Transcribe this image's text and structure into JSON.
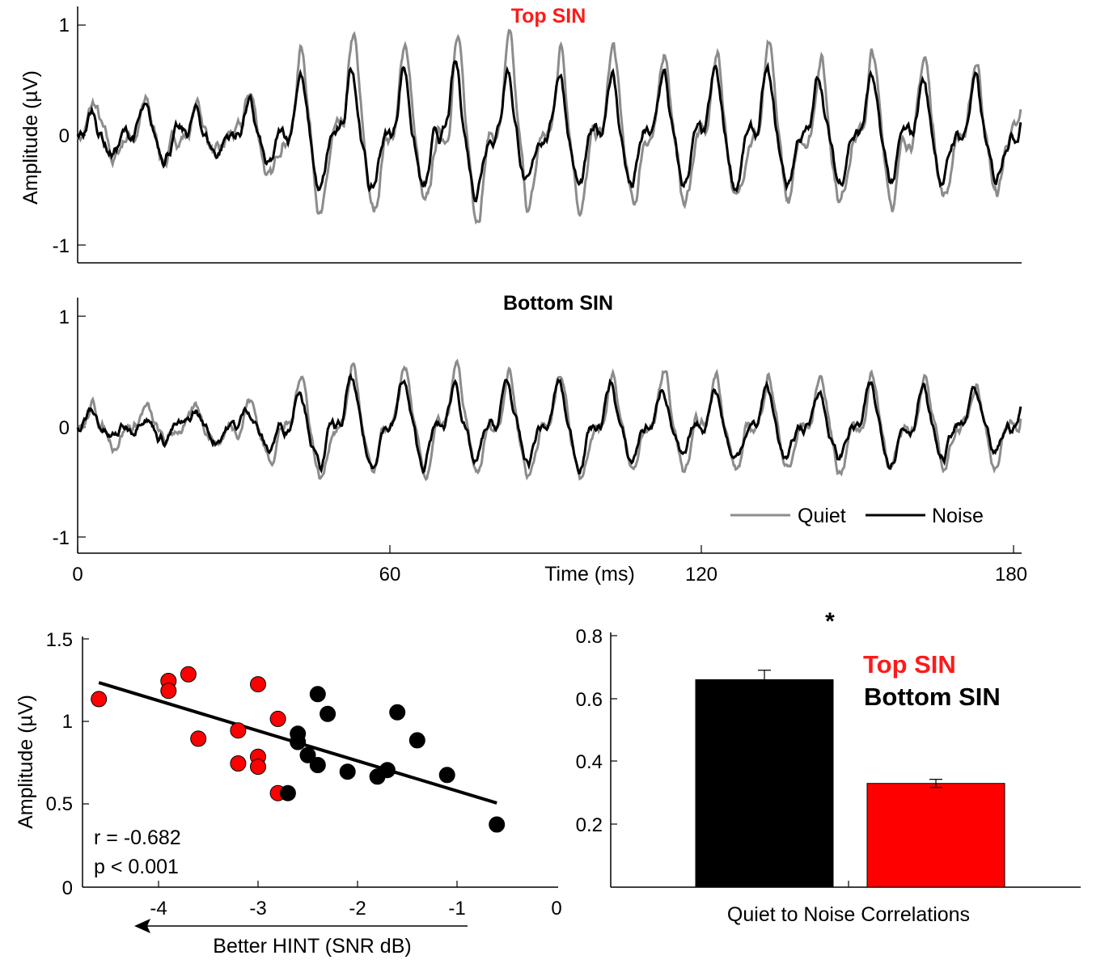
{
  "colors": {
    "quiet": "#8c8c8c",
    "noise": "#000000",
    "top_sin": "#ff0000",
    "bottom_sin": "#000000",
    "top_title": "#ff1a1a"
  },
  "chart_data": [
    {
      "type": "line",
      "title": "Top SIN",
      "ylabel": "Amplitude (µV)",
      "xlim": [
        0,
        180
      ],
      "ylim": [
        -1.2,
        1.2
      ],
      "yticks": [
        "1",
        "0",
        "-1"
      ],
      "series": [
        {
          "name": "Quiet",
          "amp": 0.85,
          "noise_amp": 0.16
        },
        {
          "name": "Noise",
          "amp": 0.62,
          "noise_amp": 0.14
        }
      ]
    },
    {
      "type": "line",
      "title": "Bottom SIN",
      "xlabel": "Time (ms)",
      "xlim": [
        0,
        180
      ],
      "ylim": [
        -1.2,
        1.2
      ],
      "yticks": [
        "1",
        "0",
        "-1"
      ],
      "xticks": [
        "0",
        "60",
        "120",
        "180"
      ],
      "legend": {
        "position": "bottom-right",
        "entries": [
          "Quiet",
          "Noise"
        ]
      },
      "series": [
        {
          "name": "Quiet",
          "amp": 0.55,
          "noise_amp": 0.12
        },
        {
          "name": "Noise",
          "amp": 0.42,
          "noise_amp": 0.11
        }
      ]
    },
    {
      "type": "scatter",
      "ylabel": "Amplitude (µV)",
      "xlabel": "Better HINT (SNR dB)",
      "xlim": [
        -4.7,
        0
      ],
      "ylim": [
        0,
        1.5
      ],
      "xticks": [
        "-4",
        "-3",
        "-2",
        "-1",
        "0"
      ],
      "yticks": [
        "1.5",
        "1",
        "0.5",
        "0"
      ],
      "stats": {
        "r": "r = -0.682",
        "p": "p < 0.001"
      },
      "fit": {
        "x": [
          -4.6,
          -0.6
        ],
        "y": [
          1.24,
          0.51
        ]
      },
      "groups": [
        {
          "name": "Top SIN",
          "points": [
            [
              -4.6,
              1.14
            ],
            [
              -3.9,
              1.25
            ],
            [
              -3.9,
              1.19
            ],
            [
              -3.7,
              1.29
            ],
            [
              -3.6,
              0.9
            ],
            [
              -3.2,
              0.95
            ],
            [
              -3.2,
              0.75
            ],
            [
              -3.0,
              1.23
            ],
            [
              -3.0,
              0.79
            ],
            [
              -3.0,
              0.73
            ],
            [
              -2.8,
              1.02
            ],
            [
              -2.8,
              0.57
            ]
          ]
        },
        {
          "name": "Bottom SIN",
          "points": [
            [
              -2.7,
              0.57
            ],
            [
              -2.6,
              0.93
            ],
            [
              -2.6,
              0.88
            ],
            [
              -2.5,
              0.8
            ],
            [
              -2.4,
              1.17
            ],
            [
              -2.4,
              0.74
            ],
            [
              -2.3,
              1.05
            ],
            [
              -2.1,
              0.7
            ],
            [
              -1.8,
              0.67
            ],
            [
              -1.7,
              0.71
            ],
            [
              -1.6,
              1.06
            ],
            [
              -1.4,
              0.89
            ],
            [
              -1.1,
              0.68
            ],
            [
              -0.6,
              0.38
            ]
          ]
        }
      ]
    },
    {
      "type": "bar",
      "xlabel": "Quiet to Noise Correlations",
      "ylim": [
        0,
        0.8
      ],
      "yticks": [
        "0.8",
        "0.6",
        "0.4",
        "0.2"
      ],
      "significance": "*",
      "legend": {
        "position": "top-right",
        "entries": [
          "Top SIN",
          "Bottom SIN"
        ]
      },
      "series": [
        {
          "name": "Bottom SIN",
          "value": 0.66,
          "error": 0.03
        },
        {
          "name": "Top SIN",
          "value": 0.33,
          "error": 0.013
        }
      ]
    }
  ]
}
